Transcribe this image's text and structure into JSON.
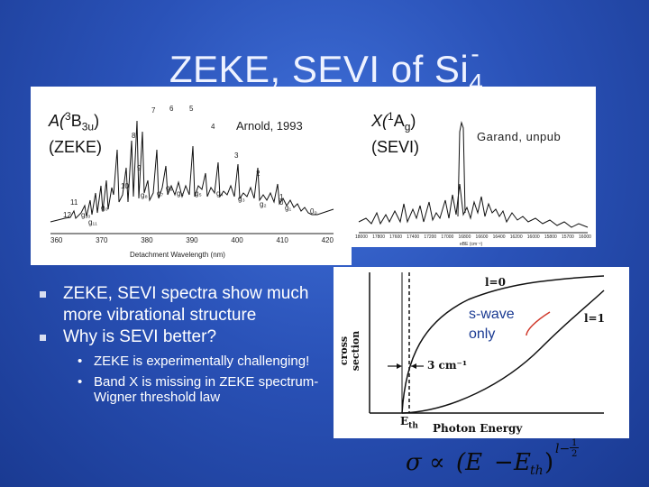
{
  "slide": {
    "title_main": "ZEKE, SEVI of Si",
    "title_sub": "4",
    "title_sup": "-"
  },
  "zeke_panel": {
    "state_label_line1_prefix": "A(",
    "state_label_sup": "3",
    "state_label_mid": "B",
    "state_label_sub": "3u",
    "state_label_suffix": ")",
    "method_label": "(ZEKE)",
    "credit": "Arnold, 1993",
    "xlabel": "Detachment Wavelength (nm)",
    "xticks": [
      "360",
      "370",
      "380",
      "390",
      "400",
      "410",
      "420"
    ],
    "peak_labels": [
      "7",
      "6",
      "5",
      "8",
      "4",
      "9",
      "3",
      "2",
      "10",
      "11",
      "12",
      "g₀",
      "g₇",
      "g₆",
      "g₅",
      "g₄",
      "g₃",
      "g₂",
      "g₁",
      "0",
      "g₈",
      "g₁₀",
      "g₁₁",
      "1",
      "0₀",
      "g₉"
    ]
  },
  "sevi_panel": {
    "state_label_prefix": "X(",
    "state_label_sup": "1",
    "state_label_mid": "A",
    "state_label_sub": "g",
    "state_label_suffix": ")",
    "method_label": "(SEVI)",
    "credit": "Garand, unpub",
    "xlabel": "eBE (cm⁻¹)",
    "xticks": [
      "18000",
      "17800",
      "17600",
      "17400",
      "17200",
      "17000",
      "16800",
      "16600",
      "16400",
      "16200",
      "16000",
      "15800",
      "15700",
      "16000"
    ]
  },
  "threshold_panel": {
    "ylabel": "cross section",
    "xlabel": "Photon Energy",
    "eth_label": "E",
    "eth_sub": "th",
    "gap_label": "3 cm⁻¹",
    "curve_l0": "l=0",
    "curve_l1": "l=1",
    "callout": "s-wave only"
  },
  "bullets": [
    {
      "text": "ZEKE, SEVI spectra show much more vibrational structure"
    },
    {
      "text": "Why is SEVI better?"
    }
  ],
  "sub_bullets": [
    {
      "text": "ZEKE is experimentally challenging!"
    },
    {
      "text": "Band X is missing in ZEKE spectrum- Wigner threshold law"
    }
  ],
  "formula": {
    "sigma": "σ",
    "propto": "∝",
    "lparen": "(E",
    "minus": "−",
    "eth": "E",
    "eth_sub": "th",
    "rparen": ")",
    "exp": "l−",
    "exp_num": "1",
    "exp_den": "2"
  },
  "colors": {
    "background": "#2a52b8",
    "accent_curve": "#d0392b",
    "text_light": "#ffffff"
  }
}
